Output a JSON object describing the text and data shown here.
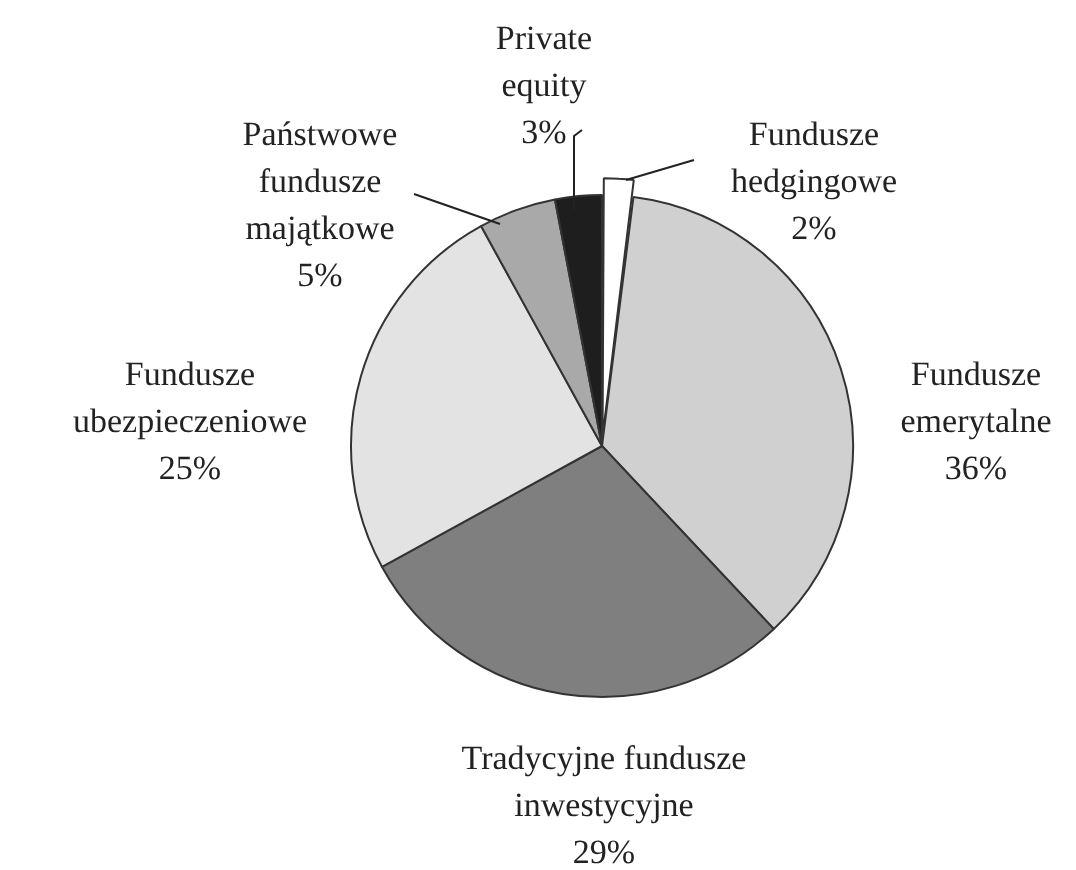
{
  "chart_data": {
    "type": "pie",
    "categories": [
      "Fundusze hedgingowe",
      "Fundusze emerytalne",
      "Tradycyjne fundusze inwestycyjne",
      "Fundusze ubezpieczeniowe",
      "Państwowe fundusze majątkowe",
      "Private equity"
    ],
    "values": [
      2,
      36,
      29,
      25,
      5,
      3
    ],
    "colors": [
      "#ffffff",
      "#d0d0d0",
      "#7f7f7f",
      "#e3e3e3",
      "#a9a9a9",
      "#1e1e1e"
    ],
    "value_labels": [
      "2%",
      "36%",
      "29%",
      "25%",
      "5%",
      "3%"
    ]
  }
}
